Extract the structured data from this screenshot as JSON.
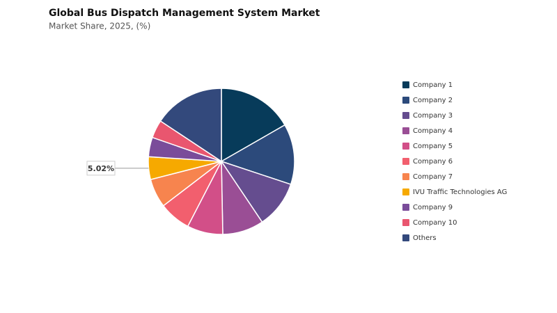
{
  "chart_data": {
    "type": "pie",
    "title": "Global Bus Dispatch Management System Market",
    "subtitle": "Market Share, 2025, (%)",
    "categories": [
      "Company 1",
      "Company 2",
      "Company 3",
      "Company 4",
      "Company 5",
      "Company 6",
      "Company 7",
      "IVU Traffic Technologies AG",
      "Company 9",
      "Company 10",
      "Others"
    ],
    "values": [
      16.7,
      13.4,
      10.5,
      9.1,
      7.9,
      7.0,
      6.4,
      5.02,
      4.3,
      4.0,
      15.68
    ],
    "value_labels": [
      null,
      null,
      null,
      null,
      null,
      null,
      null,
      "5.02%",
      null,
      null,
      null
    ],
    "colors": [
      "#073b5a",
      "#2c4a7b",
      "#654d8f",
      "#9a4e95",
      "#d24f88",
      "#f25f6e",
      "#f7844e",
      "#f6a900",
      "#7a4c9a",
      "#e9566f",
      "#33497c"
    ],
    "legend": "right"
  }
}
